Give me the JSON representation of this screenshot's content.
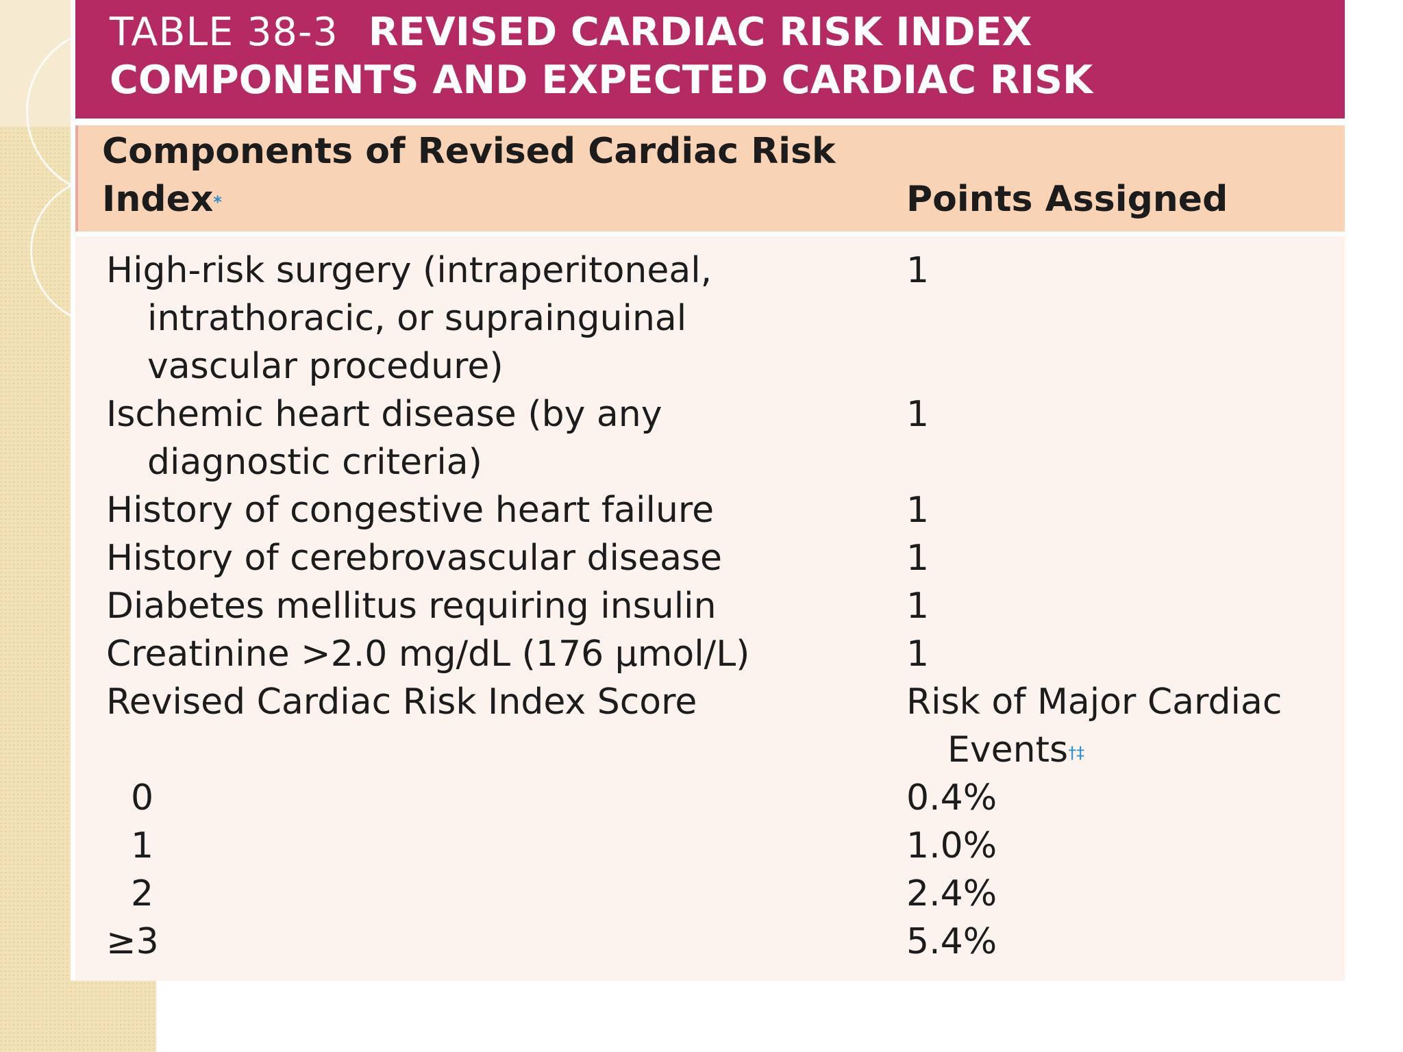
{
  "title": {
    "number": "TABLE 38-3",
    "line1": "REVISED CARDIAC RISK INDEX",
    "line2": "COMPONENTS AND EXPECTED CARDIAC RISK"
  },
  "header": {
    "col1_line1": "Components of Revised Cardiac Risk",
    "col1_line2": "Index",
    "col1_mark": "*",
    "col2": "Points Assigned"
  },
  "components": [
    {
      "lines": [
        "High-risk surgery (intraperitoneal,",
        "intrathoracic, or suprainguinal",
        "vascular procedure)"
      ],
      "points": "1"
    },
    {
      "lines": [
        "Ischemic heart disease (by any",
        "diagnostic criteria)"
      ],
      "points": "1"
    },
    {
      "lines": [
        "History of congestive heart failure"
      ],
      "points": "1"
    },
    {
      "lines": [
        "History of cerebrovascular disease"
      ],
      "points": "1"
    },
    {
      "lines": [
        "Diabetes mellitus requiring insulin"
      ],
      "points": "1"
    },
    {
      "lines": [
        "Creatinine >2.0 mg/dL (176 µmol/L)"
      ],
      "points": "1"
    }
  ],
  "risk_header": {
    "left": "Revised Cardiac Risk Index Score",
    "right_line1": "Risk of Major Cardiac",
    "right_line2": "Events",
    "right_mark": "†‡"
  },
  "risk_rows": [
    {
      "score": "0",
      "risk": "0.4%"
    },
    {
      "score": "1",
      "risk": "1.0%"
    },
    {
      "score": "2",
      "risk": "2.4%"
    },
    {
      "score": "≥3",
      "risk": "5.4%"
    }
  ],
  "colors": {
    "title_band": "#b52a63",
    "header_band": "#f9d3b6",
    "body_band": "#fdf3ee",
    "footnote_mark": "#2a8fcf"
  }
}
